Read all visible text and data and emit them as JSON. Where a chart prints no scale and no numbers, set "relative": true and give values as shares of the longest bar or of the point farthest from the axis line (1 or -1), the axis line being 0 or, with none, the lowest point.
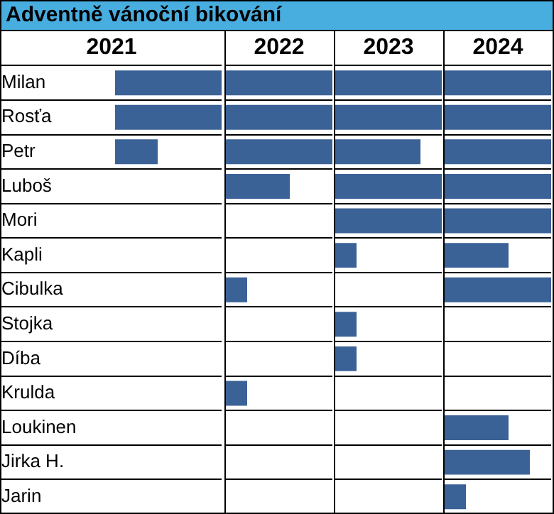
{
  "chart_data": [
    {
      "type": "bar",
      "orientation": "horizontal",
      "relative": true,
      "title": "2021",
      "annotations": [
        "Adventně vánoční bikování"
      ],
      "categories": [
        "Milan",
        "Rosťa",
        "Petr",
        "Luboš",
        "Mori",
        "Kapli",
        "Cibulka",
        "Stojka",
        "Díba",
        "Krulda",
        "Loukinen",
        "Jirka H.",
        "Jarin"
      ],
      "values": [
        1,
        1,
        0.4,
        0,
        0,
        0,
        0,
        0,
        0,
        0,
        0,
        0,
        0
      ],
      "color": "#3b6296",
      "grid": "y",
      "tick_labels": "y"
    },
    {
      "type": "bar",
      "orientation": "horizontal",
      "relative": true,
      "title": "2022",
      "values": [
        1,
        1,
        1,
        0.6,
        0,
        0,
        0.2,
        0,
        0,
        0.2,
        0,
        0,
        0
      ],
      "color": "#3b6296",
      "grid": "y",
      "tick_labels": false
    },
    {
      "type": "bar",
      "orientation": "horizontal",
      "relative": true,
      "title": "2023",
      "values": [
        1,
        1,
        0.8,
        1,
        1,
        0.2,
        0,
        0.2,
        0.2,
        0,
        0,
        0,
        0
      ],
      "color": "#3b6296",
      "grid": "y",
      "tick_labels": false
    },
    {
      "type": "bar",
      "orientation": "horizontal",
      "relative": true,
      "title": "2024",
      "values": [
        1,
        1,
        1,
        1,
        1,
        0.6,
        1,
        0,
        0,
        0,
        0.6,
        0.8,
        0.2
      ],
      "color": "#3b6296",
      "grid": "y",
      "tick_labels": false
    }
  ]
}
